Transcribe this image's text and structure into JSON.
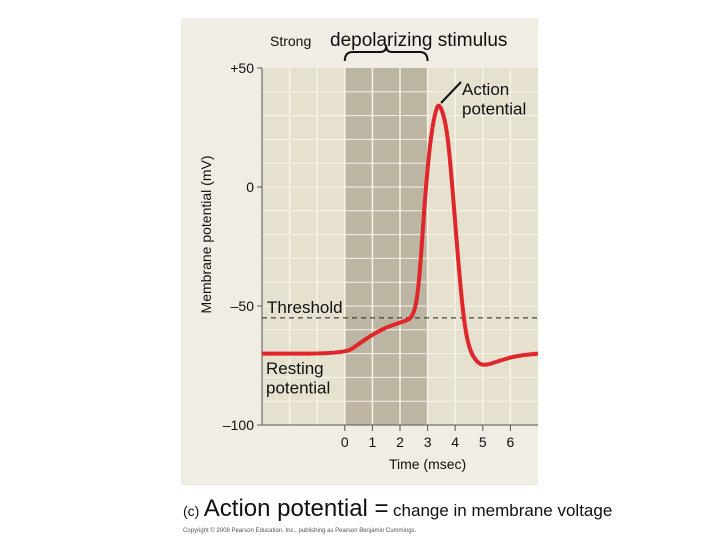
{
  "chart_data": {
    "type": "line",
    "title": "",
    "annotation_top_small": "Strong",
    "annotation_top_large": "depolarizing stimulus",
    "xlabel": "Time (msec)",
    "ylabel": "Membrane potential (mV)",
    "xlim": [
      -3,
      7
    ],
    "ylim": [
      -100,
      50
    ],
    "xticks": [
      0,
      1,
      2,
      3,
      4,
      5,
      6
    ],
    "xtick_labels": [
      "0",
      "1",
      "2",
      "3",
      "4",
      "5",
      "6"
    ],
    "yticks": [
      50,
      0,
      -50,
      -100
    ],
    "ytick_labels": [
      "+50",
      "0",
      "–50",
      "–100"
    ],
    "grid": true,
    "stimulus_interval": [
      0,
      3
    ],
    "threshold": -55,
    "threshold_label": "Threshold",
    "resting_label": "Resting\npotential",
    "peak_label": "Action\npotential",
    "colors": {
      "line": "#e0252b",
      "plot_bg": "#e6e0cf",
      "stimulus_bg": "#bcb5a2",
      "grid": "#f6f2e8"
    },
    "series": [
      {
        "x": [
          -3,
          0,
          0.5,
          1,
          1.5,
          2,
          2.5,
          2.7,
          2.9,
          3.1,
          3.3,
          3.45,
          3.7,
          3.9,
          4.1,
          4.3,
          4.5,
          4.8,
          5.1,
          5.6,
          6.2,
          7
        ],
        "y": [
          -70,
          -70,
          -66,
          -62,
          -59,
          -57,
          -55,
          -40,
          -5,
          20,
          33,
          35,
          25,
          0,
          -30,
          -55,
          -68,
          -74,
          -75,
          -73,
          -71,
          -70
        ]
      }
    ]
  },
  "caption": {
    "label": "(c)",
    "title": "Action potential =",
    "rest": "change in membrane voltage"
  },
  "copyright": "Copyright © 2008 Pearson Education, Inc., publishing as Pearson Benjamin Cummings."
}
